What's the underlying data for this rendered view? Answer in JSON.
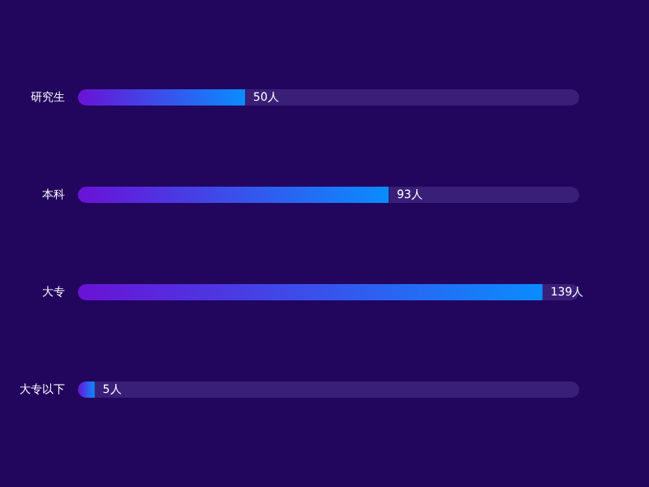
{
  "chart_data": {
    "type": "bar",
    "orientation": "horizontal",
    "categories": [
      "研究生",
      "本科",
      "大专",
      "大专以下"
    ],
    "values": [
      50,
      93,
      139,
      5
    ],
    "color": "#0a8cff",
    "value_labels": [
      "50人",
      "93人",
      "139人",
      "5人"
    ],
    "tick_labels": "y"
  }
}
